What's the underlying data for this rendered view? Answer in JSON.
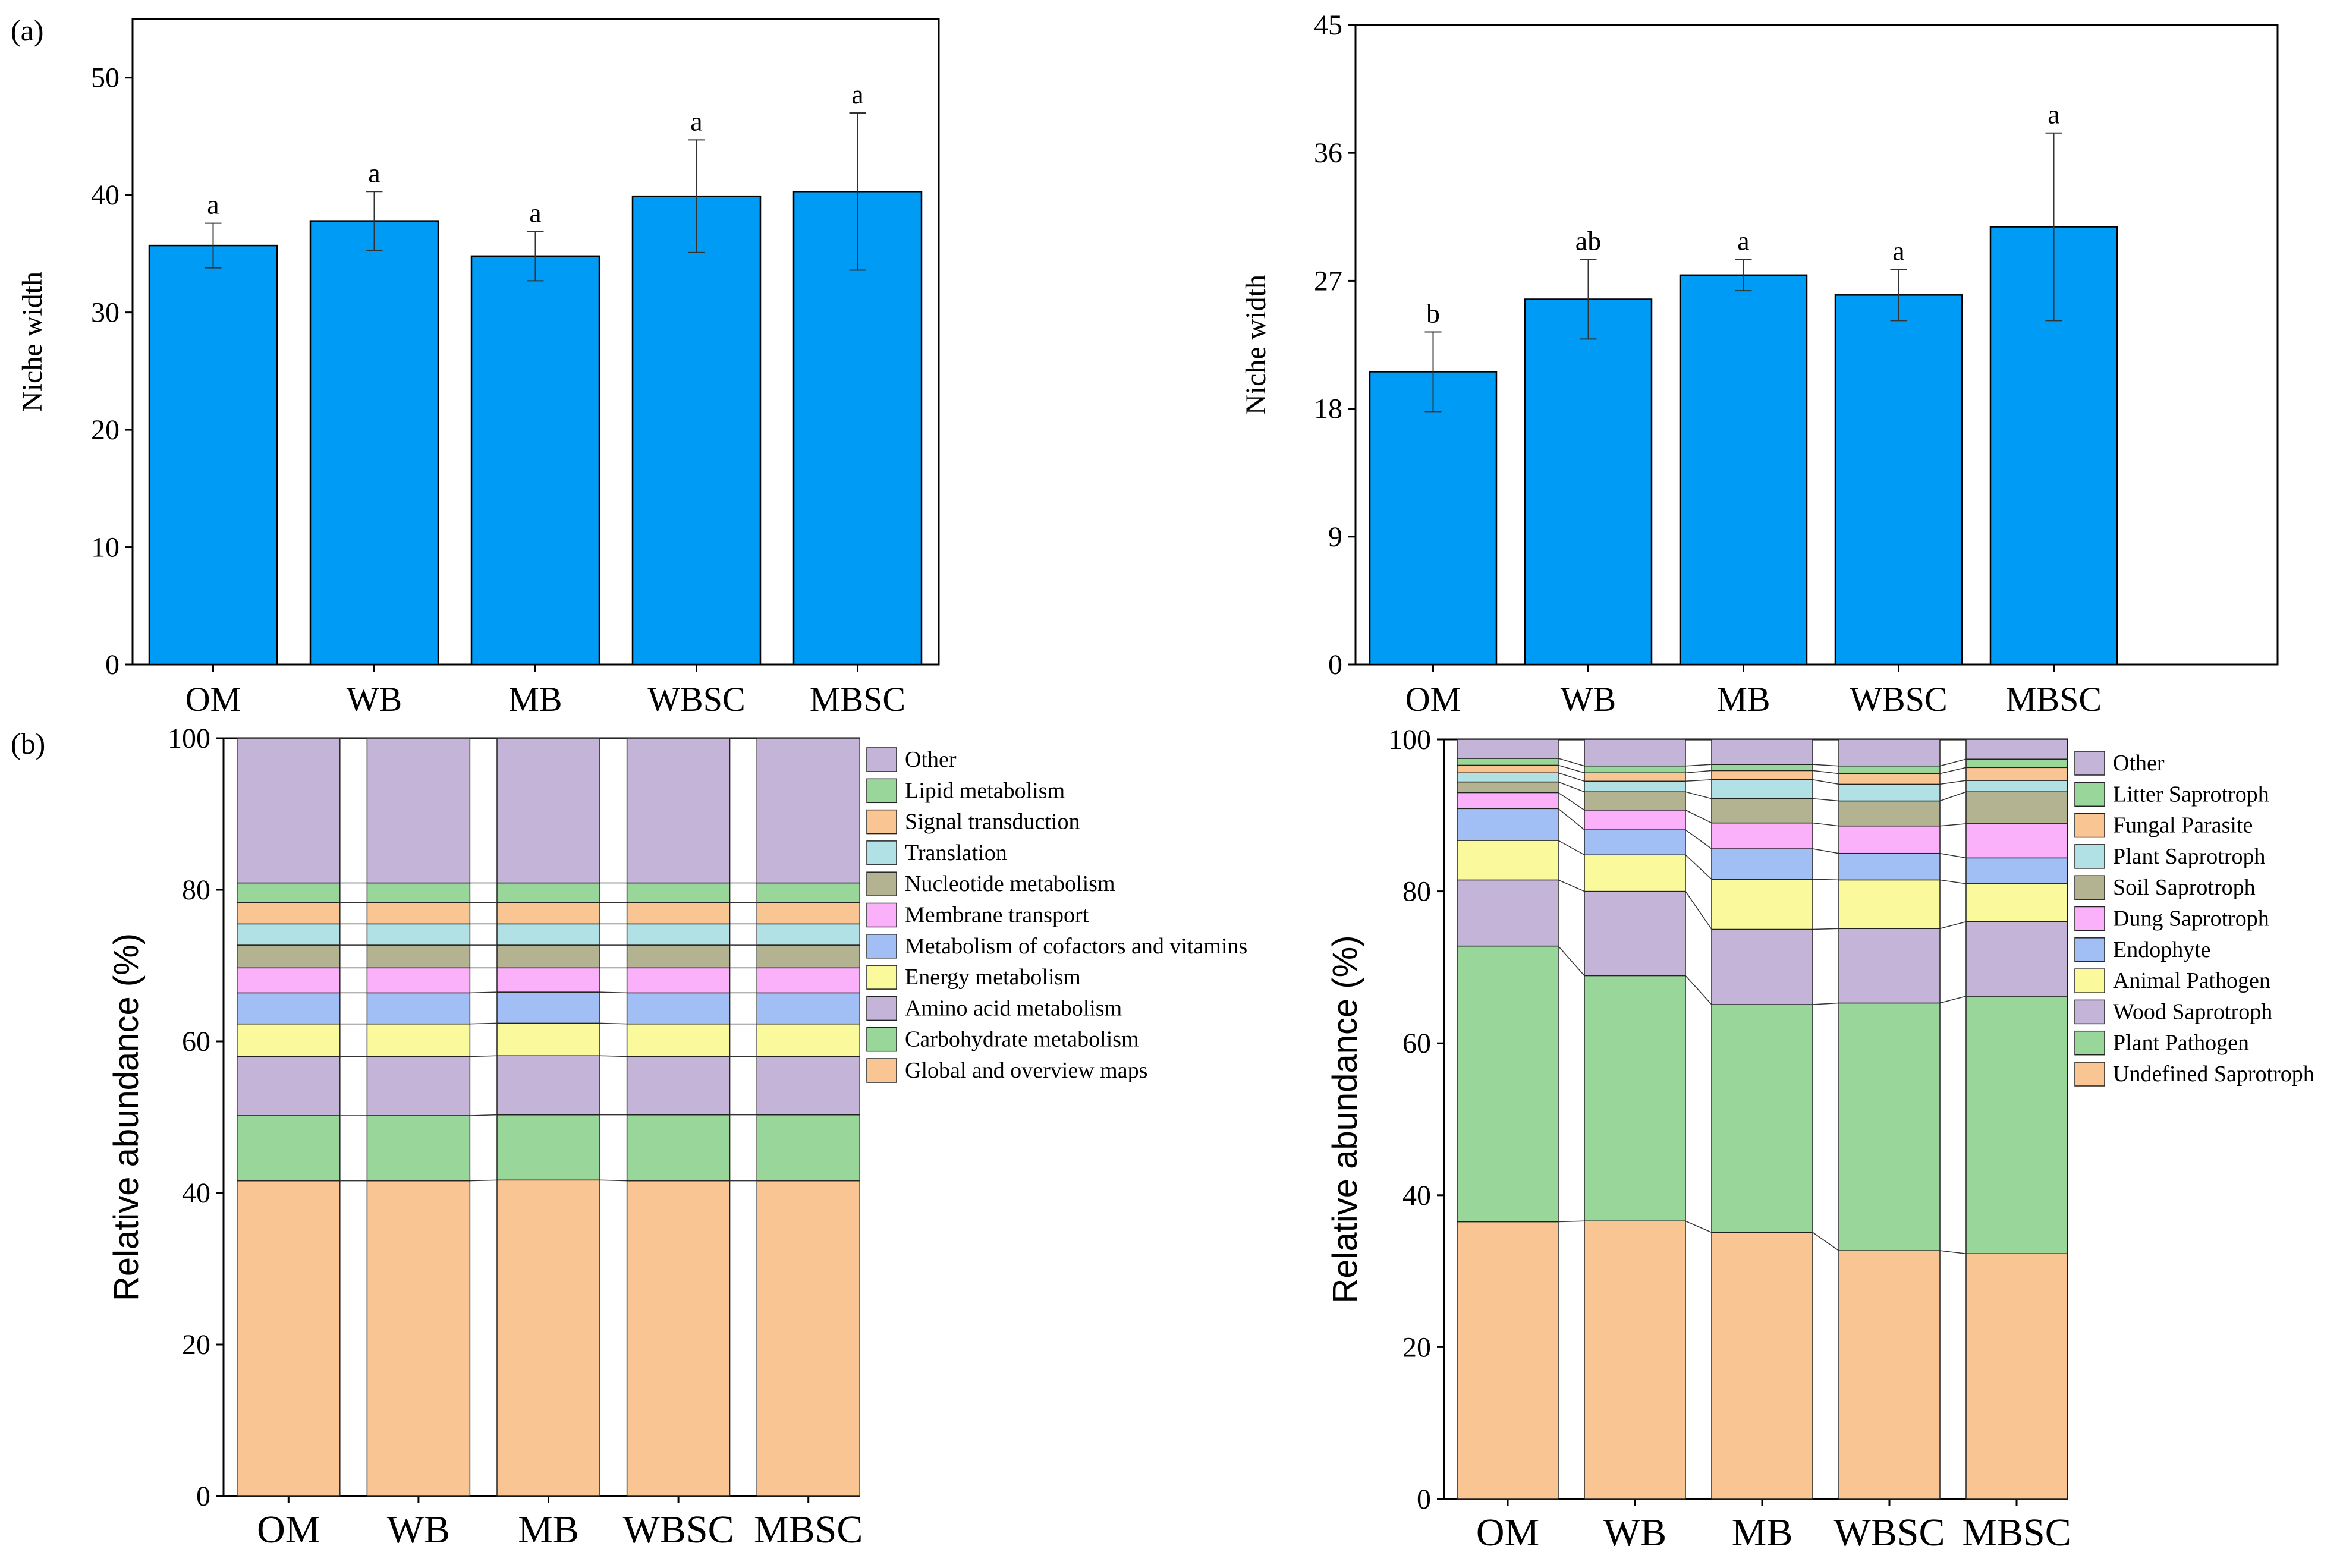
{
  "panel_labels": {
    "a": "(a)",
    "b": "(b)"
  },
  "colors": {
    "bar": "#009BF5",
    "axis": "#000000"
  },
  "chart_data": [
    {
      "id": "a-left",
      "type": "bar",
      "title": "",
      "xlabel": "",
      "ylabel": "Niche width",
      "categories": [
        "OM",
        "WB",
        "MB",
        "WBSC",
        "MBSC"
      ],
      "values": [
        35.7,
        37.8,
        34.8,
        39.9,
        40.3
      ],
      "errors": [
        1.9,
        2.5,
        2.1,
        4.8,
        6.7
      ],
      "letters": [
        "a",
        "a",
        "a",
        "a",
        "a"
      ],
      "ylim": [
        0,
        55
      ],
      "yticks": [
        0,
        10,
        20,
        30,
        40,
        50
      ]
    },
    {
      "id": "a-right",
      "type": "bar",
      "title": "",
      "xlabel": "",
      "ylabel": "Niche width",
      "categories": [
        "OM",
        "WB",
        "MB",
        "WBSC",
        "MBSC"
      ],
      "values": [
        20.6,
        25.7,
        27.4,
        26.0,
        30.8
      ],
      "errors": [
        2.8,
        2.8,
        1.1,
        1.8,
        6.6
      ],
      "letters": [
        "b",
        "ab",
        "a",
        "a",
        "a"
      ],
      "ylim": [
        0,
        45
      ],
      "yticks": [
        0,
        9,
        18,
        27,
        36,
        45
      ]
    },
    {
      "id": "b-left",
      "type": "bar",
      "stacked": true,
      "title": "",
      "xlabel": "",
      "ylabel": "Relative abundance (%)",
      "categories": [
        "OM",
        "WB",
        "MB",
        "WBSC",
        "MBSC"
      ],
      "ylim": [
        0,
        100
      ],
      "yticks": [
        0,
        20,
        40,
        60,
        80,
        100
      ],
      "legend_position": "right",
      "series": [
        {
          "name": "Global and overview maps",
          "color": "#F9C593",
          "values": [
            41.6,
            41.6,
            41.7,
            41.6,
            41.6
          ]
        },
        {
          "name": "Carbohydrate metabolism",
          "color": "#99D69A",
          "values": [
            8.6,
            8.6,
            8.6,
            8.7,
            8.7
          ]
        },
        {
          "name": "Amino acid metabolism",
          "color": "#C3B4D8",
          "values": [
            7.8,
            7.8,
            7.8,
            7.7,
            7.7
          ]
        },
        {
          "name": "Energy metabolism",
          "color": "#FAFA9C",
          "values": [
            4.3,
            4.3,
            4.3,
            4.3,
            4.3
          ]
        },
        {
          "name": "Metabolism of cofactors and vitamins",
          "color": "#A1BFF5",
          "values": [
            4.1,
            4.1,
            4.1,
            4.1,
            4.1
          ]
        },
        {
          "name": "Membrane transport",
          "color": "#FAB1FA",
          "values": [
            3.3,
            3.3,
            3.2,
            3.3,
            3.3
          ]
        },
        {
          "name": "Nucleotide metabolism",
          "color": "#B3B392",
          "values": [
            3.0,
            3.0,
            3.0,
            3.0,
            3.0
          ]
        },
        {
          "name": "Translation",
          "color": "#B1E1E5",
          "values": [
            2.8,
            2.8,
            2.8,
            2.8,
            2.8
          ]
        },
        {
          "name": "Signal transduction",
          "color": "#F9C593",
          "values": [
            2.8,
            2.8,
            2.8,
            2.8,
            2.8
          ]
        },
        {
          "name": "Lipid metabolism",
          "color": "#99D69A",
          "values": [
            2.6,
            2.6,
            2.6,
            2.6,
            2.6
          ]
        },
        {
          "name": "Other",
          "color": "#C3B4D8",
          "values": [
            19.1,
            19.1,
            19.1,
            19.1,
            19.1
          ]
        }
      ]
    },
    {
      "id": "b-right",
      "type": "bar",
      "stacked": true,
      "title": "",
      "xlabel": "",
      "ylabel": "Relative abundance (%)",
      "categories": [
        "OM",
        "WB",
        "MB",
        "WBSC",
        "MBSC"
      ],
      "ylim": [
        0,
        100
      ],
      "yticks": [
        0,
        20,
        40,
        60,
        80,
        100
      ],
      "legend_position": "right",
      "series": [
        {
          "name": "Undefined Saprotroph",
          "color": "#F9C593",
          "values": [
            36.5,
            36.6,
            35.1,
            32.7,
            32.3
          ]
        },
        {
          "name": "Plant Pathogen",
          "color": "#99D69A",
          "values": [
            36.3,
            32.3,
            30.0,
            32.6,
            33.9
          ]
        },
        {
          "name": "Wood Saprotroph",
          "color": "#C3B4D8",
          "values": [
            8.7,
            11.1,
            9.9,
            9.8,
            9.8
          ]
        },
        {
          "name": "Animal Pathogen",
          "color": "#FAFA9C",
          "values": [
            5.2,
            4.8,
            6.6,
            6.4,
            5.0
          ]
        },
        {
          "name": "Endophyte",
          "color": "#A1BFF5",
          "values": [
            4.2,
            3.3,
            4.0,
            3.5,
            3.4
          ]
        },
        {
          "name": "Dung Saprotroph",
          "color": "#FAB1FA",
          "values": [
            2.1,
            2.6,
            3.4,
            3.6,
            4.5
          ]
        },
        {
          "name": "Soil Saprotroph",
          "color": "#B3B392",
          "values": [
            1.4,
            2.4,
            3.2,
            3.3,
            4.2
          ]
        },
        {
          "name": "Plant Saprotroph",
          "color": "#B1E1E5",
          "values": [
            1.2,
            1.4,
            2.5,
            2.2,
            1.5
          ]
        },
        {
          "name": "Fungal Parasite",
          "color": "#F9C593",
          "values": [
            1.0,
            1.1,
            1.2,
            1.4,
            1.7
          ]
        },
        {
          "name": "Litter Saprotroph",
          "color": "#99D69A",
          "values": [
            0.9,
            0.9,
            0.8,
            1.0,
            1.1
          ]
        },
        {
          "name": "Other",
          "color": "#C3B4D8",
          "values": [
            2.5,
            3.5,
            3.3,
            3.5,
            2.6
          ]
        }
      ]
    }
  ]
}
